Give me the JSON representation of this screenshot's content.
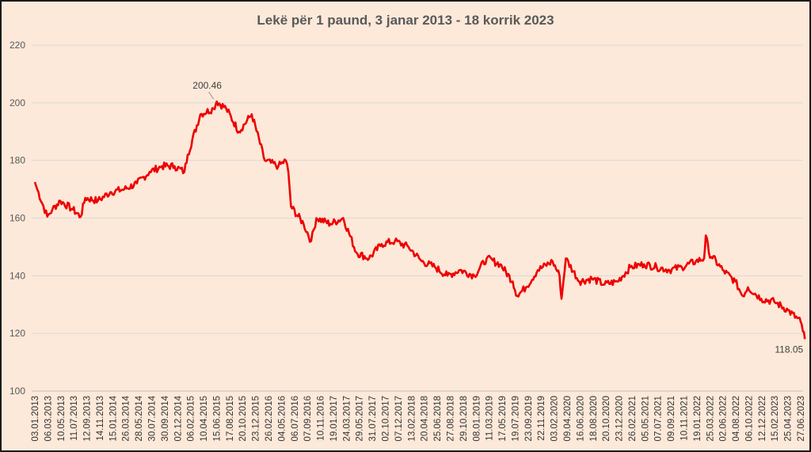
{
  "chart_data": {
    "type": "line",
    "title": "Lekë për 1 paund, 3 janar 2013 - 18 korrik 2023",
    "ylim": [
      100,
      220
    ],
    "y_ticks": [
      100,
      120,
      140,
      160,
      180,
      200,
      220
    ],
    "x_tick_labels": [
      "03.01.2013",
      "06.03.2013",
      "10.05.2013",
      "11.07.2013",
      "12.09.2013",
      "14.11.2013",
      "15.01.2014",
      "26.03.2014",
      "28.05.2014",
      "30.07.2014",
      "30.09.2014",
      "02.12.2014",
      "06.02.2015",
      "10.04.2015",
      "15.06.2015",
      "17.08.2015",
      "20.10.2015",
      "23.12.2015",
      "26.02.2016",
      "04.05.2016",
      "06.07.2016",
      "07.09.2016",
      "10.11.2016",
      "19.01.2017",
      "24.03.2017",
      "29.05.2017",
      "31.07.2017",
      "02.10.2017",
      "07.12.2017",
      "13.02.2018",
      "20.04.2018",
      "25.06.2018",
      "27.08.2018",
      "29.10.2018",
      "08.01.2019",
      "11.03.2019",
      "17.05.2019",
      "19.07.2019",
      "23.09.2019",
      "22.11.2019",
      "03.02.2020",
      "09.04.2020",
      "16.06.2020",
      "18.08.2020",
      "20.10.2020",
      "23.12.2020",
      "26.02.2021",
      "05.05.2021",
      "07.07.2021",
      "09.09.2021",
      "10.11.2021",
      "19.01.2022",
      "25.03.2022",
      "02.06.2022",
      "04.08.2022",
      "06.10.2022",
      "12.12.2022",
      "15.02.2023",
      "25.04.2023",
      "27.06.2023"
    ],
    "grid": true,
    "legend": "none",
    "series": [
      {
        "color": "#ee0000",
        "x": [
          "03.01.2013",
          "15.01.2013",
          "06.03.2013",
          "01.04.2013",
          "10.05.2013",
          "11.07.2013",
          "20.08.2013",
          "12.09.2013",
          "14.11.2013",
          "15.01.2014",
          "26.03.2014",
          "28.05.2014",
          "30.07.2014",
          "30.09.2014",
          "02.12.2014",
          "20.01.2015",
          "06.02.2015",
          "10.04.2015",
          "15.06.2015",
          "01.07.2015",
          "17.08.2015",
          "20.10.2015",
          "23.12.2015",
          "26.02.2016",
          "04.05.2016",
          "10.06.2016",
          "23.06.2016",
          "06.07.2016",
          "07.09.2016",
          "15.10.2016",
          "10.11.2016",
          "19.01.2017",
          "24.03.2017",
          "29.05.2017",
          "31.07.2017",
          "02.10.2017",
          "07.12.2017",
          "13.02.2018",
          "20.04.2018",
          "25.06.2018",
          "27.08.2018",
          "29.10.2018",
          "08.01.2019",
          "11.03.2019",
          "17.05.2019",
          "19.07.2019",
          "10.08.2019",
          "23.09.2019",
          "22.11.2019",
          "03.02.2020",
          "09.03.2020",
          "19.03.2020",
          "09.04.2020",
          "16.06.2020",
          "18.08.2020",
          "20.10.2020",
          "23.12.2020",
          "26.02.2021",
          "05.05.2021",
          "07.07.2021",
          "09.09.2021",
          "10.11.2021",
          "19.01.2022",
          "01.03.2022",
          "10.03.2022",
          "25.03.2022",
          "02.06.2022",
          "04.08.2022",
          "10.09.2022",
          "06.10.2022",
          "12.12.2022",
          "15.02.2023",
          "25.04.2023",
          "27.06.2023",
          "18.07.2023"
        ],
        "values": [
          172.5,
          170,
          160.5,
          163,
          166,
          163,
          160.5,
          167,
          166,
          169,
          170,
          172,
          176,
          178,
          178,
          176,
          182,
          196,
          198,
          200.46,
          198,
          190,
          196,
          180,
          178,
          180,
          176,
          164,
          158,
          152,
          160,
          158,
          160,
          148,
          146,
          151,
          152,
          150,
          145,
          143,
          140,
          142,
          140,
          146,
          144,
          138,
          133,
          136,
          142,
          145,
          140,
          132,
          146,
          138,
          139,
          137,
          138,
          143,
          144,
          143,
          142,
          143,
          145,
          146,
          154,
          148,
          142,
          138,
          133,
          136,
          132,
          131,
          128,
          124,
          118.05
        ]
      }
    ],
    "annotations": [
      {
        "label": "200.46",
        "x": "15.06.2015",
        "y": 200.46
      },
      {
        "label": "118.05",
        "x": "18.07.2023",
        "y": 118.05
      }
    ]
  }
}
